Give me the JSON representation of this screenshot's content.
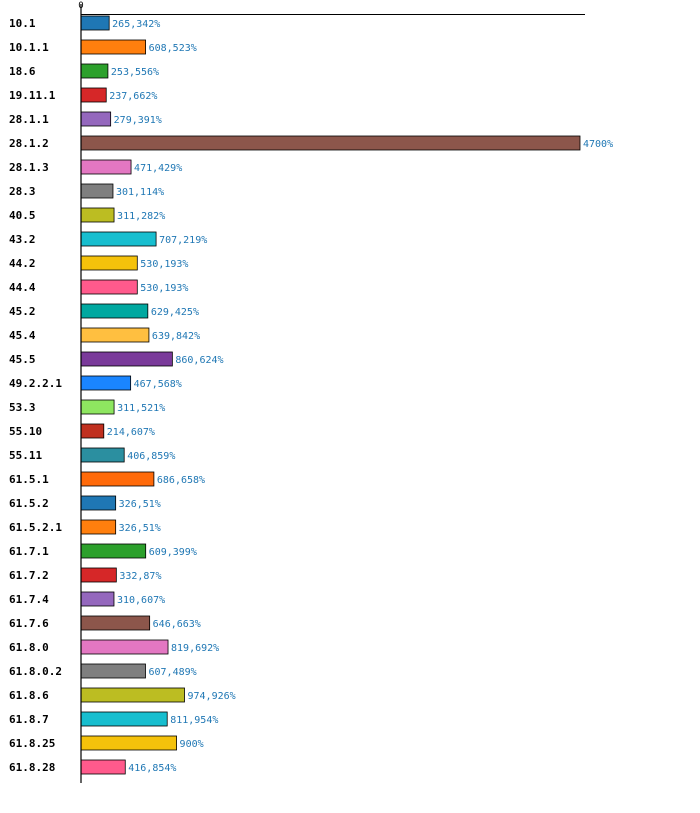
{
  "chart_data": {
    "type": "bar",
    "orientation": "horizontal",
    "title": "",
    "xlabel": "",
    "ylabel": "",
    "x_tick_labels": [
      "0"
    ],
    "xlim": [
      0,
      4700
    ],
    "grid": false,
    "legend": "none",
    "categories": [
      "10.1",
      "10.1.1",
      "18.6",
      "19.11.1",
      "28.1.1",
      "28.1.2",
      "28.1.3",
      "28.3",
      "40.5",
      "43.2",
      "44.2",
      "44.4",
      "45.2",
      "45.4",
      "45.5",
      "49.2.2.1",
      "53.3",
      "55.10",
      "55.11",
      "61.5.1",
      "61.5.2",
      "61.5.2.1",
      "61.7.1",
      "61.7.2",
      "61.7.4",
      "61.7.6",
      "61.8.0",
      "61.8.0.2",
      "61.8.6",
      "61.8.7",
      "61.8.25",
      "61.8.28"
    ],
    "values": [
      265.342,
      608.523,
      253.556,
      237.662,
      279.391,
      4700,
      471.429,
      301.114,
      311.282,
      707.219,
      530.193,
      530.193,
      629.425,
      639.842,
      860.624,
      467.568,
      311.521,
      214.607,
      406.859,
      686.658,
      326.51,
      326.51,
      609.399,
      332.87,
      310.607,
      646.663,
      819.692,
      607.489,
      974.926,
      811.954,
      900,
      416.854
    ],
    "value_labels": [
      "265,342%",
      "608,523%",
      "253,556%",
      "237,662%",
      "279,391%",
      "4700%",
      "471,429%",
      "301,114%",
      "311,282%",
      "707,219%",
      "530,193%",
      "530,193%",
      "629,425%",
      "639,842%",
      "860,624%",
      "467,568%",
      "311,521%",
      "214,607%",
      "406,859%",
      "686,658%",
      "326,51%",
      "326,51%",
      "609,399%",
      "332,87%",
      "310,607%",
      "646,663%",
      "819,692%",
      "607,489%",
      "974,926%",
      "811,954%",
      "900%",
      "416,854%"
    ],
    "colors": [
      "#1f77b4",
      "#ff7f0e",
      "#2ca02c",
      "#d62728",
      "#9467bd",
      "#8c564b",
      "#e377c2",
      "#7f7f7f",
      "#bcbd22",
      "#17becf",
      "#f5c20b",
      "#ff5a8c",
      "#00a8a0",
      "#ffbf40",
      "#7a3a9a",
      "#1a85ff",
      "#8ee660",
      "#c0301f",
      "#2b8fa0",
      "#ff6a0a",
      "#1f77b4",
      "#ff7f0e",
      "#2ca02c",
      "#d62728",
      "#9467bd",
      "#8c564b",
      "#e377c2",
      "#7f7f7f",
      "#bcbd22",
      "#17becf",
      "#f5c20b",
      "#ff5a8c"
    ],
    "label_color": "#1f77b4"
  }
}
